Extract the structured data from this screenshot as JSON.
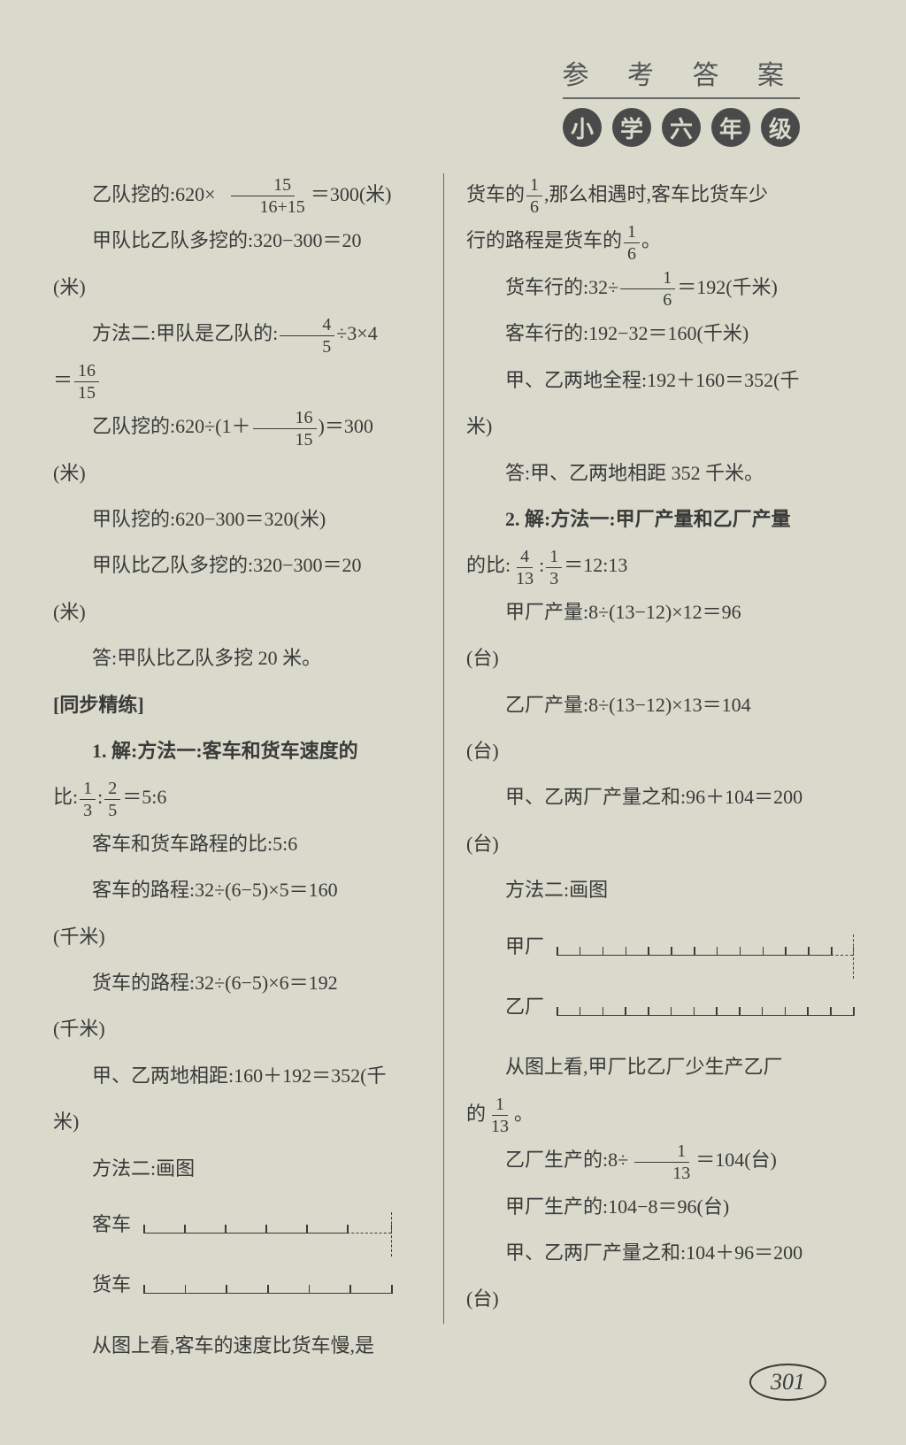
{
  "header": {
    "title": "参 考 答 案",
    "badges": [
      "小",
      "学",
      "六",
      "年",
      "级"
    ]
  },
  "left": {
    "l1a": "乙队挖的:620×",
    "l1_num": "15",
    "l1_den": "16+15",
    "l1b": "＝300(米)",
    "l2": "甲队比乙队多挖的:320−300＝20",
    "l3": "(米)",
    "l4a": "方法二:甲队是乙队的:",
    "l4_num1": "4",
    "l4_den1": "5",
    "l4b": "÷3×4",
    "l5a": "＝",
    "l5_num": "16",
    "l5_den": "15",
    "l6a": "乙队挖的:620÷(1＋",
    "l6_num": "16",
    "l6_den": "15",
    "l6b": ")＝300",
    "l7": "(米)",
    "l8": "甲队挖的:620−300＝320(米)",
    "l9": "甲队比乙队多挖的:320−300＝20",
    "l10": "(米)",
    "l11": "答:甲队比乙队多挖 20 米。",
    "l12": "[同步精练]",
    "l13": "1. 解:方法一:客车和货车速度的",
    "l14a": "比:",
    "l14_num1": "1",
    "l14_den1": "3",
    "l14b": ":",
    "l14_num2": "2",
    "l14_den2": "5",
    "l14c": "＝5:6",
    "l15": "客车和货车路程的比:5:6",
    "l16": "客车的路程:32÷(6−5)×5＝160",
    "l17": "(千米)",
    "l18": "货车的路程:32÷(6−5)×6＝192",
    "l19": "(千米)",
    "l20": "甲、乙两地相距:160＋192＝352(千",
    "l21": "米)",
    "l22": "方法二:画图",
    "d1_label": "客车",
    "d2_label": "货车",
    "l23": "从图上看,客车的速度比货车慢,是"
  },
  "right": {
    "r1a": "货车的",
    "r1_num": "1",
    "r1_den": "6",
    "r1b": ",那么相遇时,客车比货车少",
    "r2a": "行的路程是货车的",
    "r2_num": "1",
    "r2_den": "6",
    "r2b": "。",
    "r3a": "货车行的:32÷",
    "r3_num": "1",
    "r3_den": "6",
    "r3b": "＝192(千米)",
    "r4": "客车行的:192−32＝160(千米)",
    "r5": "甲、乙两地全程:192＋160＝352(千",
    "r6": "米)",
    "r7": "答:甲、乙两地相距 352 千米。",
    "r8": "2. 解:方法一:甲厂产量和乙厂产量",
    "r9a": "的比:",
    "r9_num1": "4",
    "r9_den1": "13",
    "r9b": ":",
    "r9_num2": "1",
    "r9_den2": "3",
    "r9c": "＝12:13",
    "r10": "甲厂产量:8÷(13−12)×12＝96",
    "r11": "(台)",
    "r12": "乙厂产量:8÷(13−12)×13＝104",
    "r13": "(台)",
    "r14": "甲、乙两厂产量之和:96＋104＝200",
    "r15": "(台)",
    "r16": "方法二:画图",
    "d3_label": "甲厂",
    "d4_label": "乙厂",
    "r17": "从图上看,甲厂比乙厂少生产乙厂",
    "r18a": "的",
    "r18_num": "1",
    "r18_den": "13",
    "r18b": "。",
    "r19a": "乙厂生产的:8÷",
    "r19_num": "1",
    "r19_den": "13",
    "r19b": "＝104(台)",
    "r20": "甲厂生产的:104−8＝96(台)",
    "r21": "甲、乙两厂产量之和:104＋96＝200",
    "r22": "(台)"
  },
  "pageNumber": "301",
  "diagrams": {
    "left_ruler1_width": 230,
    "left_ruler1_ticks": 6,
    "left_ruler2_width": 280,
    "left_ruler2_ticks": 7,
    "right_ruler1_width": 310,
    "right_ruler1_ticks": 13,
    "right_ruler2_width": 335,
    "right_ruler2_ticks": 14
  }
}
